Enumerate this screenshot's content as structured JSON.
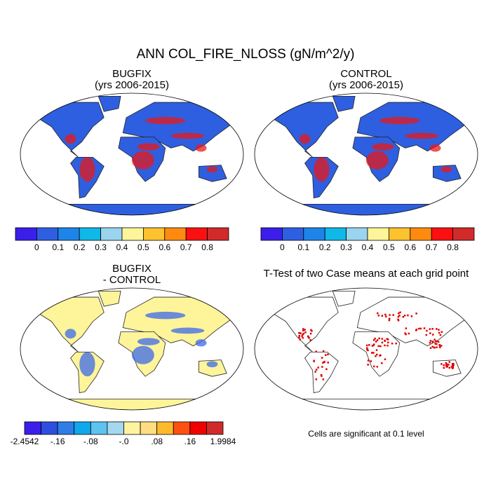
{
  "title": "ANN COL_FIRE_NLOSS (gN/m^2/y)",
  "panels": [
    {
      "title": "BUGFIX",
      "subtitle": "(yrs 2006-2015)"
    },
    {
      "title": "CONTROL",
      "subtitle": "(yrs 2006-2015)"
    },
    {
      "title": "BUGFIX",
      "subtitle": "- CONTROL"
    },
    {
      "title": "T-Test of two Case means at each grid point"
    }
  ],
  "colorbars": [
    {
      "colors": [
        "#3b1eea",
        "#2e5fe0",
        "#1f84e8",
        "#10b8e8",
        "#9ad4ee",
        "#fef49a",
        "#fec22f",
        "#fe8b10",
        "#fa1010",
        "#d02a2a"
      ],
      "labels": [
        "0",
        "0.1",
        "0.2",
        "0.3",
        "0.4",
        "0.5",
        "0.6",
        "0.7",
        "0.8"
      ]
    },
    {
      "colors": [
        "#3b1eea",
        "#2e5fe0",
        "#1f84e8",
        "#10b8e8",
        "#9ad4ee",
        "#fef49a",
        "#fec22f",
        "#fe8b10",
        "#fa1010",
        "#d02a2a"
      ],
      "labels": [
        "0",
        "0.1",
        "0.2",
        "0.3",
        "0.4",
        "0.5",
        "0.6",
        "0.7",
        "0.8"
      ]
    },
    {
      "colors": [
        "#3b1eea",
        "#2d4fe0",
        "#2f7ee8",
        "#10a8ec",
        "#5cc4ee",
        "#a4d8ee",
        "#fef4a0",
        "#fede80",
        "#feba2c",
        "#fe5010",
        "#f00000",
        "#d02a2a"
      ],
      "labels": [
        "-2.4542",
        "-.16",
        "-.08",
        "-.0",
        ".08",
        ".16",
        "1.9984"
      ]
    }
  ],
  "note": "Cells are significant at 0.1 level"
}
